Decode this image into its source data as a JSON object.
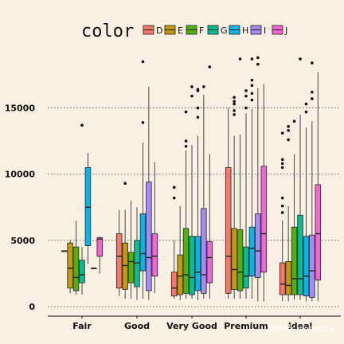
{
  "chart_data": {
    "type": "boxplot",
    "title": "",
    "xlabel": "",
    "ylabel": "",
    "categories": [
      "Fair",
      "Good",
      "Very Good",
      "Premium",
      "Ideal"
    ],
    "ylim": [
      -500,
      19000
    ],
    "yticks": [
      0,
      5000,
      10000,
      15000
    ],
    "ytick_labels": [
      "0",
      "5000",
      "10000",
      "15000"
    ],
    "grid": "horizontal-dotted",
    "legend": {
      "title": "color",
      "position": "top",
      "entries": [
        "D",
        "E",
        "F",
        "G",
        "H",
        "I",
        "J"
      ]
    },
    "colors": {
      "D": "#f8766d",
      "E": "#c49a00",
      "F": "#53b400",
      "G": "#00c094",
      "H": "#00b6eb",
      "I": "#a58aff",
      "J": "#fb61d7"
    },
    "series": [
      {
        "name": "D",
        "boxes": [
          {
            "category": "Fair",
            "min": 4200,
            "q1": 4200,
            "median": 4200,
            "q3": 4200,
            "max": 4200,
            "outliers": []
          },
          {
            "category": "Good",
            "min": 800,
            "q1": 1400,
            "median": 3800,
            "q3": 5500,
            "max": 7300,
            "outliers": []
          },
          {
            "category": "Very Good",
            "min": 600,
            "q1": 800,
            "median": 1400,
            "q3": 2600,
            "max": 5000,
            "outliers": [
              8200,
              9000
            ]
          },
          {
            "category": "Premium",
            "min": 600,
            "q1": 1000,
            "median": 3800,
            "q3": 10500,
            "max": 15000,
            "outliers": []
          },
          {
            "category": "Ideal",
            "min": 400,
            "q1": 900,
            "median": 1700,
            "q3": 3300,
            "max": 6500,
            "outliers": [
              7100,
              7600,
              8200,
              10500,
              10800,
              11100,
              13100
            ]
          }
        ]
      },
      {
        "name": "E",
        "boxes": [
          {
            "category": "Fair",
            "min": 1000,
            "q1": 1400,
            "median": 2900,
            "q3": 4800,
            "max": 5000,
            "outliers": []
          },
          {
            "category": "Good",
            "min": 600,
            "q1": 1300,
            "median": 3100,
            "q3": 4800,
            "max": 7300,
            "outliers": [
              9300
            ]
          },
          {
            "category": "Very Good",
            "min": 500,
            "q1": 900,
            "median": 2300,
            "q3": 3900,
            "max": 7600,
            "outliers": []
          },
          {
            "category": "Premium",
            "min": 600,
            "q1": 1300,
            "median": 2800,
            "q3": 5900,
            "max": 12900,
            "outliers": [
              14500,
              14800,
              15300,
              15500,
              15800
            ]
          },
          {
            "category": "Ideal",
            "min": 400,
            "q1": 900,
            "median": 1600,
            "q3": 3400,
            "max": 7600,
            "outliers": [
              12600,
              13300,
              13600
            ]
          }
        ]
      },
      {
        "name": "F",
        "boxes": [
          {
            "category": "Fair",
            "min": 900,
            "q1": 1200,
            "median": 2200,
            "q3": 4500,
            "max": 6500,
            "outliers": []
          },
          {
            "category": "Good",
            "min": 600,
            "q1": 1800,
            "median": 3400,
            "q3": 4100,
            "max": 8000,
            "outliers": []
          },
          {
            "category": "Very Good",
            "min": 600,
            "q1": 1000,
            "median": 2400,
            "q3": 5900,
            "max": 11800,
            "outliers": [
              12100,
              12500,
              14700
            ]
          },
          {
            "category": "Premium",
            "min": 600,
            "q1": 1200,
            "median": 2600,
            "q3": 5800,
            "max": 13000,
            "outliers": [
              18700
            ]
          },
          {
            "category": "Ideal",
            "min": 500,
            "q1": 900,
            "median": 2100,
            "q3": 6000,
            "max": 11500,
            "outliers": [
              14000
            ]
          }
        ]
      },
      {
        "name": "G",
        "boxes": [
          {
            "category": "Fair",
            "min": 900,
            "q1": 1800,
            "median": 2400,
            "q3": 3500,
            "max": 4500,
            "outliers": [
              13700
            ]
          },
          {
            "category": "Good",
            "min": 500,
            "q1": 1500,
            "median": 3300,
            "q3": 5000,
            "max": 7500,
            "outliers": []
          },
          {
            "category": "Very Good",
            "min": 600,
            "q1": 900,
            "median": 2200,
            "q3": 5300,
            "max": 12200,
            "outliers": [
              15900,
              16600
            ]
          },
          {
            "category": "Premium",
            "min": 600,
            "q1": 1400,
            "median": 2300,
            "q3": 4500,
            "max": 14600,
            "outliers": [
              15000,
              15900,
              16300
            ]
          },
          {
            "category": "Ideal",
            "min": 500,
            "q1": 900,
            "median": 2100,
            "q3": 6900,
            "max": 14500,
            "outliers": [
              18700
            ]
          }
        ]
      },
      {
        "name": "H",
        "boxes": [
          {
            "category": "Fair",
            "min": 3200,
            "q1": 4600,
            "median": 7500,
            "q3": 10500,
            "max": 11600,
            "outliers": []
          },
          {
            "category": "Good",
            "min": 600,
            "q1": 2700,
            "median": 4000,
            "q3": 7000,
            "max": 12400,
            "outliers": [
              13900,
              18500
            ]
          },
          {
            "category": "Very Good",
            "min": 500,
            "q1": 1200,
            "median": 2600,
            "q3": 5300,
            "max": 12900,
            "outliers": [
              14300,
              15000,
              16300,
              16400
            ]
          },
          {
            "category": "Premium",
            "min": 600,
            "q1": 2300,
            "median": 4400,
            "q3": 6000,
            "max": 14900,
            "outliers": [
              15600,
              16100,
              16700,
              17100,
              18700
            ]
          },
          {
            "category": "Ideal",
            "min": 400,
            "q1": 800,
            "median": 2300,
            "q3": 5300,
            "max": 13500,
            "outliers": [
              14700,
              15300
            ]
          }
        ]
      },
      {
        "name": "I",
        "boxes": [
          {
            "category": "Fair",
            "min": 2900,
            "q1": 2900,
            "median": 2900,
            "q3": 2900,
            "max": 2900,
            "outliers": []
          },
          {
            "category": "Good",
            "min": 500,
            "q1": 1200,
            "median": 3700,
            "q3": 9400,
            "max": 16600,
            "outliers": []
          },
          {
            "category": "Very Good",
            "min": 600,
            "q1": 1000,
            "median": 2400,
            "q3": 7400,
            "max": 16000,
            "outliers": [
              16600
            ]
          },
          {
            "category": "Premium",
            "min": 400,
            "q1": 2200,
            "median": 4200,
            "q3": 7000,
            "max": 16500,
            "outliers": [
              18300,
              18800
            ]
          },
          {
            "category": "Ideal",
            "min": 400,
            "q1": 700,
            "median": 2700,
            "q3": 5400,
            "max": 14000,
            "outliers": [
              15700,
              16200,
              18400
            ]
          }
        ]
      },
      {
        "name": "J",
        "boxes": [
          {
            "category": "Fair",
            "min": 2500,
            "q1": 3800,
            "median": 5100,
            "q3": 5200,
            "max": 5300,
            "outliers": []
          },
          {
            "category": "Good",
            "min": 1000,
            "q1": 2300,
            "median": 3800,
            "q3": 5500,
            "max": 10900,
            "outliers": []
          },
          {
            "category": "Very Good",
            "min": 600,
            "q1": 1800,
            "median": 3700,
            "q3": 4900,
            "max": 11500,
            "outliers": [
              18100
            ]
          },
          {
            "category": "Premium",
            "min": 400,
            "q1": 2600,
            "median": 5500,
            "q3": 10600,
            "max": 16800,
            "outliers": []
          },
          {
            "category": "Ideal",
            "min": 400,
            "q1": 2000,
            "median": 5500,
            "q3": 9200,
            "max": 17700,
            "outliers": []
          }
        ]
      }
    ]
  },
  "watermark": "微信号: biobabble"
}
